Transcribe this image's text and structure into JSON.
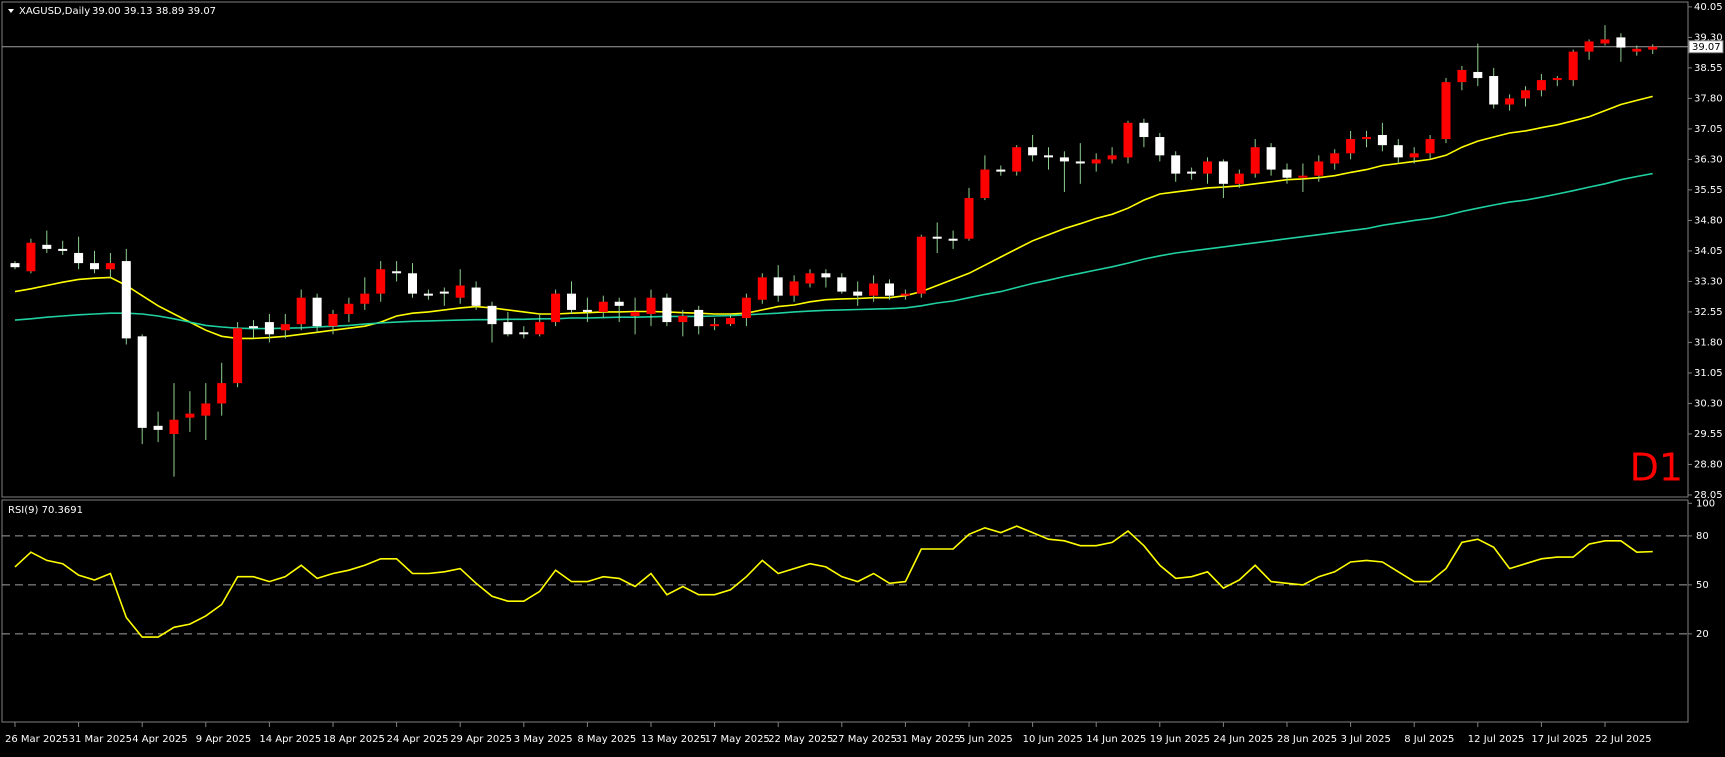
{
  "header": {
    "symbol": "XAGUSD,Daily",
    "ohlc": "39.00 39.13 38.89 39.07"
  },
  "timeframe_label": "D1",
  "chart_data": {
    "type": "candlestick",
    "categories": [
      "26 Mar 2025",
      null,
      null,
      null,
      "31 Mar 2025",
      null,
      null,
      null,
      "4 Apr 2025",
      null,
      null,
      null,
      "9 Apr 2025",
      null,
      null,
      null,
      "14 Apr 2025",
      null,
      null,
      null,
      "18 Apr 2025",
      null,
      null,
      null,
      "24 Apr 2025",
      null,
      null,
      null,
      "29 Apr 2025",
      null,
      null,
      null,
      "3 May 2025",
      null,
      null,
      null,
      "8 May 2025",
      null,
      null,
      null,
      "13 May 2025",
      null,
      null,
      null,
      "17 May 2025",
      null,
      null,
      null,
      "22 May 2025",
      null,
      null,
      null,
      "27 May 2025",
      null,
      null,
      null,
      "31 May 2025",
      null,
      null,
      null,
      "5 Jun 2025",
      null,
      null,
      null,
      "10 Jun 2025",
      null,
      null,
      null,
      "14 Jun 2025",
      null,
      null,
      null,
      "19 Jun 2025",
      null,
      null,
      null,
      "24 Jun 2025",
      null,
      null,
      null,
      "28 Jun 2025",
      null,
      null,
      null,
      "3 Jul 2025",
      null,
      null,
      null,
      "8 Jul 2025",
      null,
      null,
      null,
      "12 Jul 2025",
      null,
      null,
      null,
      "17 Jul 2025",
      null,
      null,
      null,
      "22 Jul 2025",
      null,
      null,
      null
    ],
    "open": [
      33.75,
      33.55,
      34.2,
      34.1,
      34.0,
      33.75,
      33.6,
      33.8,
      31.95,
      29.75,
      29.55,
      29.95,
      30.0,
      30.3,
      30.8,
      32.2,
      32.3,
      32.1,
      32.25,
      32.9,
      32.2,
      32.5,
      32.75,
      33.0,
      33.55,
      33.5,
      33.0,
      33.05,
      32.9,
      33.15,
      32.7,
      32.3,
      32.05,
      32.0,
      32.3,
      33.0,
      32.6,
      32.55,
      32.8,
      32.45,
      32.5,
      32.9,
      32.3,
      32.6,
      32.2,
      32.25,
      32.4,
      32.85,
      33.4,
      32.95,
      33.25,
      33.5,
      33.4,
      33.05,
      32.95,
      33.25,
      32.95,
      33.0,
      34.4,
      34.35,
      34.35,
      35.35,
      36.05,
      36.0,
      36.6,
      36.4,
      36.35,
      36.25,
      36.2,
      36.3,
      36.35,
      37.2,
      36.85,
      36.4,
      36.0,
      35.95,
      36.25,
      35.7,
      35.95,
      36.6,
      36.05,
      35.85,
      35.9,
      36.2,
      36.45,
      36.8,
      36.9,
      36.65,
      36.35,
      36.45,
      36.8,
      38.2,
      38.45,
      38.35,
      37.65,
      37.8,
      38.0,
      38.25,
      38.25,
      38.95,
      39.15,
      39.3,
      38.95,
      39.0
    ],
    "high": [
      33.8,
      34.35,
      34.55,
      34.3,
      34.4,
      34.05,
      34.0,
      34.1,
      32.0,
      30.1,
      30.8,
      30.6,
      30.8,
      31.3,
      32.3,
      32.35,
      32.5,
      32.5,
      33.1,
      33.0,
      32.6,
      32.9,
      33.4,
      33.8,
      33.8,
      33.75,
      33.1,
      33.15,
      33.6,
      33.3,
      32.8,
      32.55,
      32.2,
      32.5,
      33.1,
      33.3,
      32.9,
      32.95,
      32.9,
      32.9,
      33.1,
      33.0,
      32.6,
      32.7,
      32.4,
      32.5,
      33.0,
      33.5,
      33.7,
      33.45,
      33.6,
      33.6,
      33.5,
      33.3,
      33.45,
      33.35,
      33.1,
      34.45,
      34.75,
      34.55,
      35.6,
      36.4,
      36.15,
      36.65,
      36.9,
      36.6,
      36.5,
      36.7,
      36.45,
      36.6,
      37.25,
      37.3,
      36.95,
      36.5,
      36.1,
      36.35,
      36.3,
      36.05,
      36.8,
      36.7,
      36.2,
      36.2,
      36.4,
      36.55,
      37.0,
      37.0,
      37.2,
      36.8,
      36.6,
      36.9,
      38.3,
      38.6,
      39.15,
      38.55,
      37.9,
      38.1,
      38.4,
      38.35,
      39.0,
      39.25,
      39.6,
      39.4,
      39.1,
      39.13
    ],
    "low": [
      33.6,
      33.5,
      34.0,
      33.95,
      33.6,
      33.5,
      33.4,
      31.75,
      29.3,
      29.35,
      28.5,
      29.6,
      29.4,
      30.0,
      30.7,
      31.9,
      31.8,
      31.9,
      32.1,
      32.05,
      32.0,
      32.3,
      32.6,
      32.8,
      33.3,
      32.9,
      32.85,
      32.7,
      32.75,
      32.6,
      31.8,
      31.95,
      31.9,
      31.95,
      32.2,
      32.5,
      32.3,
      32.4,
      32.3,
      32.0,
      32.2,
      32.2,
      31.95,
      32.0,
      32.1,
      32.2,
      32.2,
      32.75,
      32.8,
      32.8,
      33.15,
      33.15,
      33.0,
      32.7,
      32.8,
      32.85,
      32.85,
      32.9,
      34.0,
      34.1,
      34.3,
      35.3,
      35.9,
      35.9,
      36.25,
      36.05,
      35.5,
      35.7,
      36.0,
      36.2,
      36.2,
      36.6,
      36.25,
      35.75,
      35.8,
      35.7,
      35.35,
      35.6,
      35.85,
      35.9,
      35.7,
      35.5,
      35.75,
      36.05,
      36.3,
      36.6,
      36.5,
      36.2,
      36.2,
      36.3,
      36.7,
      38.0,
      38.1,
      37.55,
      37.5,
      37.6,
      37.85,
      38.1,
      38.1,
      38.75,
      39.1,
      38.7,
      38.85,
      38.89
    ],
    "close": [
      33.65,
      34.25,
      34.1,
      34.05,
      33.75,
      33.6,
      33.75,
      31.9,
      29.7,
      29.65,
      29.9,
      30.05,
      30.3,
      30.8,
      32.15,
      32.15,
      32.0,
      32.25,
      32.9,
      32.2,
      32.5,
      32.75,
      33.0,
      33.6,
      33.5,
      33.0,
      32.95,
      33.0,
      33.2,
      32.7,
      32.25,
      32.0,
      32.0,
      32.3,
      33.0,
      32.6,
      32.55,
      32.8,
      32.7,
      32.55,
      32.9,
      32.3,
      32.45,
      32.2,
      32.25,
      32.4,
      32.9,
      33.4,
      32.95,
      33.3,
      33.5,
      33.4,
      33.05,
      32.95,
      33.25,
      32.95,
      33.0,
      34.4,
      34.35,
      34.3,
      35.35,
      36.05,
      36.0,
      36.6,
      36.4,
      36.35,
      36.25,
      36.2,
      36.3,
      36.4,
      37.2,
      36.85,
      36.4,
      35.95,
      35.95,
      36.25,
      35.7,
      35.95,
      36.6,
      36.05,
      35.85,
      35.9,
      36.25,
      36.45,
      36.8,
      36.85,
      36.65,
      36.35,
      36.45,
      36.8,
      38.2,
      38.5,
      38.3,
      37.65,
      37.8,
      38.0,
      38.25,
      38.3,
      38.95,
      39.2,
      39.25,
      39.05,
      39.02,
      39.07
    ],
    "up_color": "#ff0000",
    "down_color": "#ffffff",
    "wick_color": "#8fcf8f",
    "moving_averages": [
      {
        "color": "#ffff00",
        "values": [
          33.05,
          33.12,
          33.2,
          33.28,
          33.35,
          33.38,
          33.4,
          33.2,
          32.95,
          32.7,
          32.5,
          32.3,
          32.1,
          31.95,
          31.9,
          31.9,
          31.92,
          31.95,
          32.0,
          32.05,
          32.1,
          32.15,
          32.2,
          32.3,
          32.45,
          32.52,
          32.55,
          32.6,
          32.65,
          32.68,
          32.65,
          32.6,
          32.55,
          32.5,
          32.5,
          32.52,
          32.53,
          32.55,
          32.55,
          32.56,
          32.56,
          32.55,
          32.53,
          32.52,
          32.5,
          32.5,
          32.52,
          32.6,
          32.68,
          32.72,
          32.8,
          32.85,
          32.87,
          32.88,
          32.9,
          32.9,
          32.95,
          33.05,
          33.2,
          33.35,
          33.5,
          33.7,
          33.9,
          34.1,
          34.3,
          34.45,
          34.6,
          34.72,
          34.85,
          34.95,
          35.1,
          35.3,
          35.45,
          35.5,
          35.55,
          35.6,
          35.62,
          35.65,
          35.7,
          35.75,
          35.8,
          35.82,
          35.85,
          35.9,
          35.98,
          36.05,
          36.15,
          36.2,
          36.25,
          36.3,
          36.4,
          36.6,
          36.75,
          36.85,
          36.95,
          37.0,
          37.08,
          37.15,
          37.25,
          37.35,
          37.5,
          37.65,
          37.75,
          37.85
        ]
      },
      {
        "color": "#20d0a0",
        "values": [
          32.35,
          32.38,
          32.42,
          32.45,
          32.48,
          32.5,
          32.52,
          32.52,
          32.5,
          32.45,
          32.38,
          32.3,
          32.22,
          32.18,
          32.15,
          32.14,
          32.14,
          32.15,
          32.16,
          32.18,
          32.2,
          32.22,
          32.25,
          32.28,
          32.3,
          32.32,
          32.33,
          32.34,
          32.35,
          32.36,
          32.36,
          32.37,
          32.37,
          32.38,
          32.38,
          32.4,
          32.4,
          32.41,
          32.42,
          32.42,
          32.43,
          32.44,
          32.44,
          32.44,
          32.45,
          32.46,
          32.48,
          32.5,
          32.52,
          32.55,
          32.57,
          32.59,
          32.6,
          32.61,
          32.62,
          32.63,
          32.65,
          32.7,
          32.77,
          32.82,
          32.9,
          32.98,
          33.05,
          33.15,
          33.25,
          33.33,
          33.42,
          33.5,
          33.58,
          33.66,
          33.75,
          33.85,
          33.93,
          34.0,
          34.05,
          34.1,
          34.15,
          34.2,
          34.25,
          34.3,
          34.35,
          34.4,
          34.45,
          34.5,
          34.55,
          34.6,
          34.68,
          34.74,
          34.8,
          34.85,
          34.92,
          35.02,
          35.1,
          35.18,
          35.25,
          35.3,
          35.37,
          35.45,
          35.53,
          35.62,
          35.7,
          35.8,
          35.88,
          35.95
        ]
      }
    ],
    "bid": 39.07,
    "bid_color": "#a0a0a0",
    "ylim": [
      28.0,
      40.17
    ],
    "yticks": [
      40.05,
      {
        "value": 39.3,
        "label": "39.30"
      },
      38.55,
      {
        "value": 37.8,
        "label": "37.80"
      },
      37.05,
      {
        "value": 36.3,
        "label": "36.30"
      },
      35.55,
      {
        "value": 34.8,
        "label": "34.80"
      },
      34.05,
      {
        "value": 33.3,
        "label": "33.30"
      },
      32.55,
      {
        "value": 31.8,
        "label": "31.80"
      },
      31.05,
      {
        "value": 30.3,
        "label": "30.30"
      },
      29.55,
      {
        "value": 28.8,
        "label": "28.80"
      },
      28.05
    ],
    "rsi": {
      "label": "RSI(9) 70.3691",
      "color": "#ffff00",
      "values": [
        61,
        70,
        65,
        63,
        56,
        53,
        57,
        30,
        18,
        18,
        24,
        26,
        31,
        38,
        55,
        55,
        52,
        55,
        62,
        54,
        57,
        59,
        62,
        66,
        66,
        57,
        57,
        58,
        60,
        51,
        43,
        40,
        40,
        46,
        59,
        52,
        52,
        55,
        54,
        49,
        57,
        44,
        49,
        44,
        44,
        47,
        55,
        65,
        57,
        60,
        63,
        61,
        55,
        52,
        57,
        51,
        52,
        72,
        72,
        72,
        81,
        85,
        82,
        86,
        82,
        78,
        77,
        74,
        74,
        76,
        83,
        74,
        62,
        54,
        55,
        58,
        48,
        53,
        62,
        52,
        51,
        50,
        55,
        58,
        64,
        65,
        64,
        58,
        52,
        52,
        60,
        76,
        78,
        73,
        60,
        63,
        66,
        67,
        67,
        75,
        77,
        77,
        70,
        70.37
      ],
      "ylim": [
        -34,
        102
      ],
      "yticks": [
        20,
        50,
        80,
        100
      ],
      "levels": [
        20,
        50,
        80
      ]
    }
  }
}
